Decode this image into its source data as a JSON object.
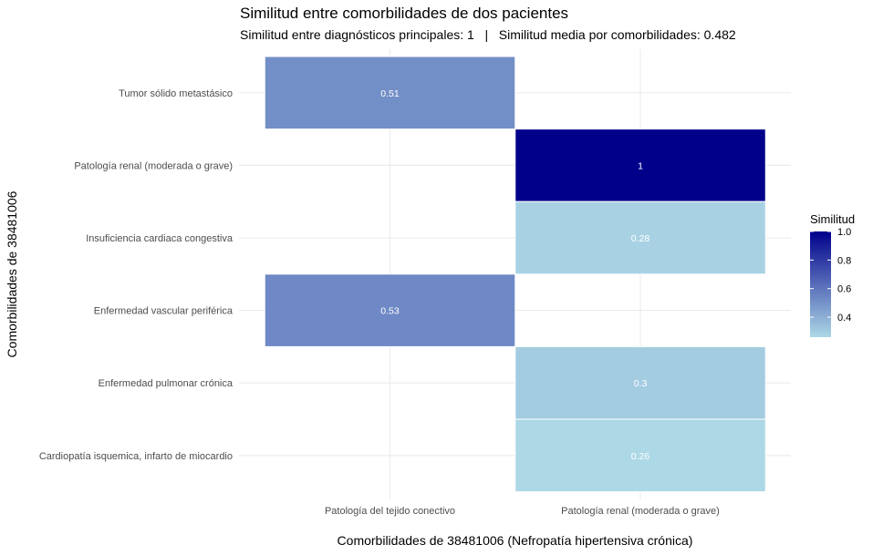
{
  "chart_data": {
    "type": "heatmap",
    "title": "Similitud entre comorbilidades de dos pacientes",
    "subtitle": "Similitud entre diagnósticos principales: 1   |   Similitud media por comorbilidades: 0.482",
    "xlabel": "Comorbilidades de 38481006 (Nefropatía hipertensiva crónica)",
    "ylabel": "Comorbilidades de 38481006",
    "x_categories": [
      "Patología del tejido conectivo",
      "Patología renal (moderada o grave)"
    ],
    "y_categories": [
      "Tumor sólido metastásico",
      "Patología renal (moderada o grave)",
      "Insuficiencia cardiaca congestiva",
      "Enfermedad vascular periférica",
      "Enfermedad pulmonar crónica",
      "Cardiopatía isquemica, infarto de miocardio"
    ],
    "cells": [
      {
        "x": "Patología del tejido conectivo",
        "y": "Tumor sólido metastásico",
        "value": 0.51,
        "label": "0.51"
      },
      {
        "x": "Patología renal (moderada o grave)",
        "y": "Patología renal (moderada o grave)",
        "value": 1,
        "label": "1"
      },
      {
        "x": "Patología renal (moderada o grave)",
        "y": "Insuficiencia cardiaca congestiva",
        "value": 0.28,
        "label": "0.28"
      },
      {
        "x": "Patología del tejido conectivo",
        "y": "Enfermedad vascular periférica",
        "value": 0.53,
        "label": "0.53"
      },
      {
        "x": "Patología renal (moderada o grave)",
        "y": "Enfermedad pulmonar crónica",
        "value": 0.3,
        "label": "0.3"
      },
      {
        "x": "Patología renal (moderada o grave)",
        "y": "Cardiopatía isquemica, infarto de miocardio",
        "value": 0.26,
        "label": "0.26"
      }
    ],
    "legend": {
      "title": "Similitud",
      "placement": "right",
      "range": [
        0.26,
        1.0
      ],
      "ticks": [
        {
          "value": 0.4,
          "label": "0.4"
        },
        {
          "value": 0.6,
          "label": "0.6"
        },
        {
          "value": 0.8,
          "label": "0.8"
        },
        {
          "value": 1.0,
          "label": "1.0"
        }
      ],
      "color_low": "#add8e6",
      "color_high": "#00008b"
    },
    "grid": true,
    "cell_border_color": "#ffffff"
  }
}
